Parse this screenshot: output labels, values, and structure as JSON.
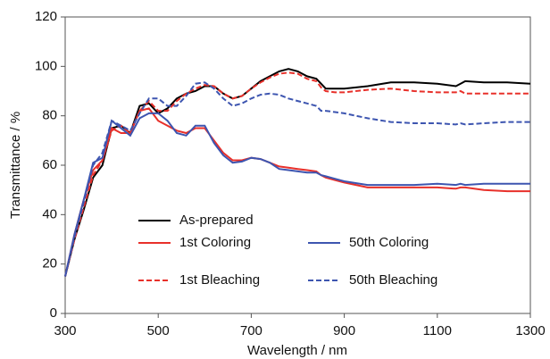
{
  "chart_data": {
    "type": "line",
    "x_label": "Wavelength / nm",
    "y_label": "Transmittance / %",
    "x": [
      300,
      320,
      340,
      360,
      380,
      400,
      420,
      440,
      460,
      480,
      500,
      520,
      540,
      560,
      580,
      600,
      620,
      640,
      660,
      680,
      700,
      720,
      740,
      760,
      780,
      800,
      820,
      840,
      850,
      860,
      880,
      900,
      950,
      1000,
      1050,
      1100,
      1140,
      1150,
      1160,
      1200,
      1250,
      1300
    ],
    "series": [
      {
        "name": "As-prepared",
        "color": "#000000",
        "line_style": "solid",
        "values": [
          15,
          30,
          42,
          55,
          60,
          75,
          76,
          73,
          84,
          85,
          81,
          83,
          87,
          89,
          90,
          92,
          92,
          89,
          87,
          88,
          91,
          94,
          96,
          98,
          99,
          98,
          96,
          95,
          93,
          91,
          91,
          91,
          92,
          93.5,
          93.5,
          93,
          92,
          93,
          94,
          93.5,
          93.5,
          93
        ]
      },
      {
        "name": "1st Coloring",
        "color": "#e8302a",
        "line_style": "solid",
        "values": [
          15,
          32,
          46,
          58,
          62,
          75,
          73,
          73,
          82,
          83,
          78,
          76,
          74,
          73,
          75,
          75,
          70,
          65,
          62,
          62,
          63,
          62.5,
          61,
          59.5,
          59,
          58.5,
          58,
          57.5,
          56,
          55,
          54,
          53,
          51,
          51,
          51,
          51,
          50.5,
          51,
          51,
          50,
          49.5,
          49.5
        ]
      },
      {
        "name": "1st Bleaching",
        "color": "#e8302a",
        "line_style": "dashed",
        "values": [
          15,
          30,
          43,
          56,
          62,
          74,
          76,
          73,
          82,
          86,
          82,
          82,
          86,
          89,
          91,
          92.5,
          92,
          89,
          87,
          88,
          91,
          93.5,
          95.5,
          97,
          97.5,
          97,
          95,
          94,
          91.5,
          90,
          89.5,
          89.5,
          90.5,
          91,
          90,
          89.5,
          89.5,
          90,
          89,
          89,
          89,
          89
        ]
      },
      {
        "name": "50th Coloring",
        "color": "#3d55b0",
        "line_style": "solid",
        "values": [
          15,
          32,
          46,
          61,
          63,
          78,
          75,
          72,
          79,
          81,
          81,
          78,
          73,
          72,
          76,
          76,
          69,
          64,
          61,
          61.5,
          63,
          62.5,
          61,
          58.5,
          58,
          57.5,
          57,
          57,
          56,
          55.5,
          54.5,
          53.5,
          52,
          52,
          52,
          52.5,
          52,
          52.5,
          52,
          52.5,
          52.5,
          52.5
        ]
      },
      {
        "name": "50th Bleaching",
        "color": "#3d55b0",
        "line_style": "dashed",
        "values": [
          15,
          31,
          45,
          60,
          65,
          78,
          76,
          74,
          81,
          87,
          87,
          84,
          84,
          88,
          93,
          93.5,
          91,
          87,
          84,
          85,
          87,
          88.5,
          89,
          88.5,
          87,
          86,
          85,
          84,
          82,
          82,
          81.5,
          81,
          79,
          77.5,
          77,
          77,
          76.5,
          77,
          76.5,
          77,
          77.5,
          77.5
        ]
      }
    ],
    "xlim": [
      300,
      1300
    ],
    "xticks": [
      300,
      500,
      700,
      900,
      1100,
      1300
    ],
    "ylim": [
      0,
      120
    ],
    "yticks": [
      0,
      20,
      40,
      60,
      80,
      100,
      120
    ]
  }
}
